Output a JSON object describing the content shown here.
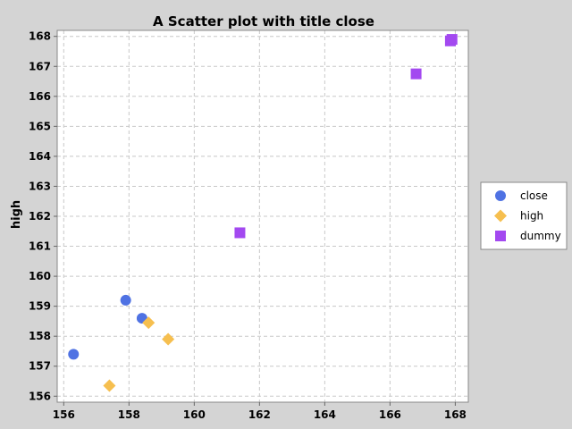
{
  "chart_data": {
    "type": "scatter",
    "title": "A Scatter plot with title close",
    "xlabel": "",
    "ylabel": "high",
    "xlim": [
      155.8,
      168.4
    ],
    "ylim": [
      155.8,
      168.2
    ],
    "x_ticks": [
      156,
      158,
      160,
      162,
      164,
      166,
      168
    ],
    "y_ticks": [
      156,
      157,
      158,
      159,
      160,
      161,
      162,
      163,
      164,
      165,
      166,
      167,
      168
    ],
    "grid": true,
    "legend_position": "right",
    "series": [
      {
        "name": "close",
        "marker": "circle",
        "color": "#4f72e3",
        "points": [
          [
            156.3,
            157.4
          ],
          [
            157.9,
            159.2
          ],
          [
            158.4,
            158.6
          ]
        ]
      },
      {
        "name": "high",
        "marker": "diamond",
        "color": "#f6bf4f",
        "points": [
          [
            157.4,
            156.35
          ],
          [
            158.6,
            158.45
          ],
          [
            159.2,
            157.9
          ]
        ]
      },
      {
        "name": "dummy",
        "marker": "square",
        "color": "#a349f0",
        "points": [
          [
            161.4,
            161.45
          ],
          [
            166.8,
            166.75
          ],
          [
            167.85,
            167.85
          ],
          [
            167.9,
            167.9
          ]
        ]
      }
    ]
  }
}
